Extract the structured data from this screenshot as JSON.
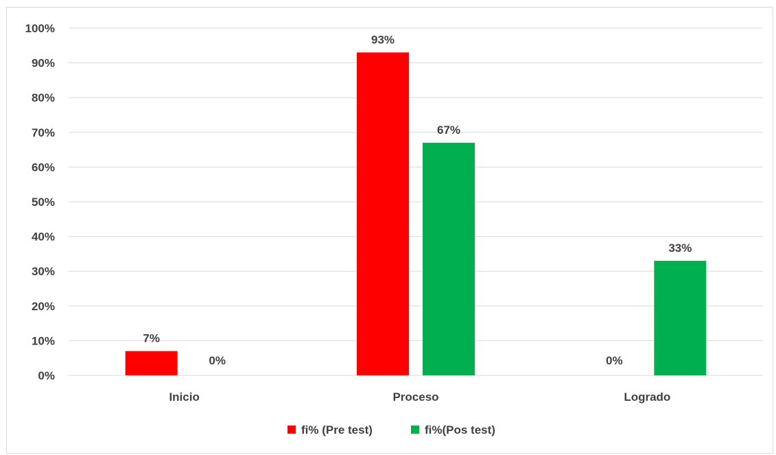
{
  "chart_data": {
    "type": "bar",
    "categories": [
      "Inicio",
      "Proceso",
      "Logrado"
    ],
    "series": [
      {
        "name": "fi% (Pre test)",
        "values": [
          7,
          93,
          0
        ],
        "labels": [
          "7%",
          "93%",
          "0%"
        ],
        "color": "#ff0000"
      },
      {
        "name": "fi%(Pos test)",
        "values": [
          0,
          67,
          33
        ],
        "labels": [
          "0%",
          "67%",
          "33%"
        ],
        "color": "#00b050"
      }
    ],
    "ylim": [
      0,
      100
    ],
    "yticks": [
      0,
      10,
      20,
      30,
      40,
      50,
      60,
      70,
      80,
      90,
      100
    ],
    "ytick_labels": [
      "0%",
      "10%",
      "20%",
      "30%",
      "40%",
      "50%",
      "60%",
      "70%",
      "80%",
      "90%",
      "100%"
    ],
    "title": "",
    "xlabel": "",
    "ylabel": "",
    "grid": true,
    "legend_position": "bottom"
  }
}
